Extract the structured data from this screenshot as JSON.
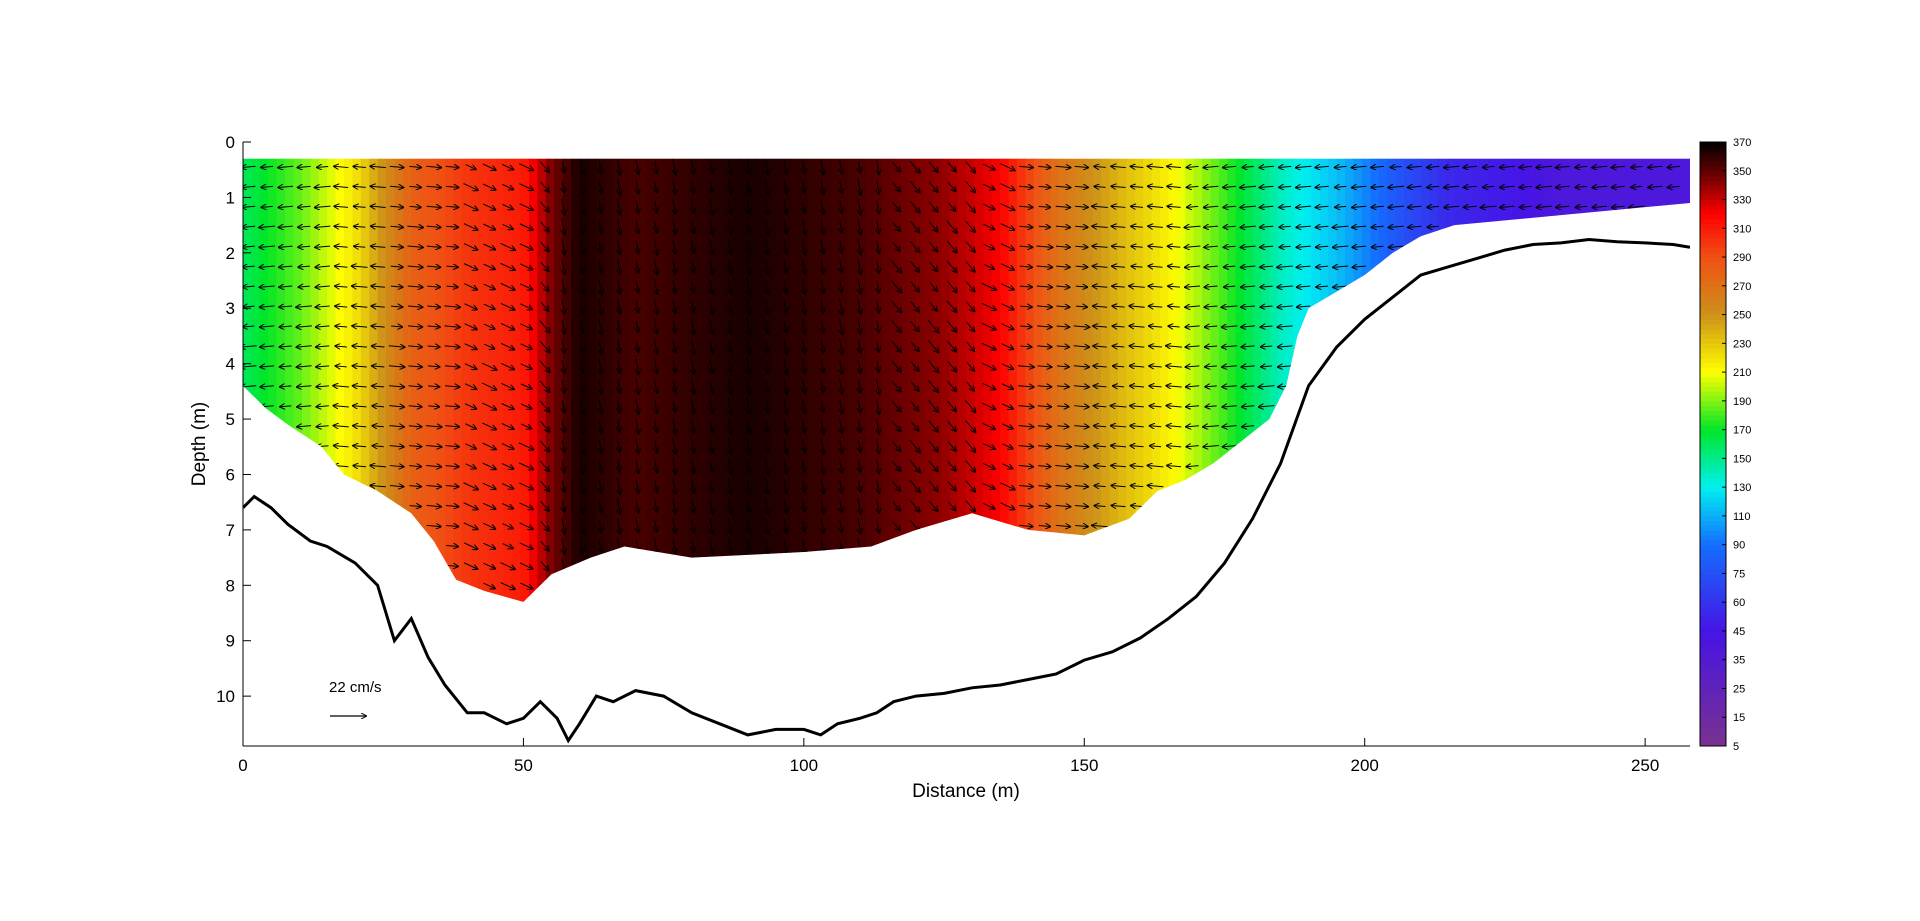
{
  "chart_data": {
    "type": "heatmap",
    "title": "",
    "xlabel": "Distance (m)",
    "ylabel": "Depth (m)",
    "xlim": [
      0,
      258
    ],
    "ylim": [
      0,
      10.9
    ],
    "y_reversed": true,
    "x_ticks": [
      "0",
      "50",
      "100",
      "150",
      "200",
      "250"
    ],
    "y_ticks": [
      "0",
      "1",
      "2",
      "3",
      "4",
      "5",
      "6",
      "7",
      "8",
      "9",
      "10"
    ],
    "colorbar": {
      "range": [
        5,
        370
      ],
      "ticks": [
        "5",
        "15",
        "25",
        "35",
        "45",
        "60",
        "75",
        "90",
        "110",
        "130",
        "150",
        "170",
        "190",
        "210",
        "230",
        "250",
        "270",
        "290",
        "310",
        "330",
        "350",
        "370"
      ],
      "tick_values": [
        5,
        15,
        25,
        35,
        45,
        60,
        75,
        90,
        110,
        130,
        150,
        170,
        190,
        210,
        230,
        250,
        270,
        290,
        310,
        330,
        350,
        370
      ]
    },
    "field_profile": {
      "x": [
        0,
        10,
        20,
        30,
        40,
        50,
        55,
        60,
        70,
        80,
        90,
        100,
        110,
        125,
        135,
        145,
        155,
        165,
        175,
        185,
        195,
        205,
        215,
        235,
        258
      ],
      "value": [
        160,
        185,
        220,
        280,
        300,
        310,
        345,
        365,
        355,
        360,
        365,
        360,
        355,
        340,
        320,
        270,
        240,
        215,
        180,
        140,
        115,
        80,
        55,
        40,
        40
      ]
    },
    "data_bottom_depth": {
      "x": [
        0,
        4,
        8,
        14,
        18,
        24,
        30,
        34,
        38,
        43,
        50,
        55,
        62,
        68,
        80,
        100,
        112,
        120,
        130,
        140,
        150,
        158,
        163,
        168,
        173,
        178,
        183,
        186,
        188,
        190,
        195,
        200,
        205,
        210,
        216,
        258
      ],
      "depth": [
        4.4,
        4.8,
        5.1,
        5.5,
        6.0,
        6.3,
        6.7,
        7.2,
        7.9,
        8.1,
        8.3,
        7.8,
        7.5,
        7.3,
        7.5,
        7.4,
        7.3,
        7.0,
        6.7,
        7.0,
        7.1,
        6.8,
        6.3,
        6.1,
        5.8,
        5.4,
        5.0,
        4.4,
        3.5,
        3.0,
        2.7,
        2.4,
        2.0,
        1.7,
        1.5,
        1.1
      ]
    },
    "bed_profile": {
      "x": [
        0,
        2,
        5,
        8,
        12,
        15,
        20,
        24,
        27,
        30,
        33,
        36,
        40,
        43,
        47,
        50,
        53,
        56,
        58,
        60,
        63,
        66,
        70,
        75,
        80,
        85,
        90,
        95,
        100,
        103,
        106,
        110,
        113,
        116,
        120,
        125,
        130,
        135,
        140,
        145,
        150,
        155,
        160,
        165,
        170,
        175,
        180,
        185,
        190,
        195,
        200,
        205,
        210,
        215,
        220,
        225,
        230,
        235,
        240,
        245,
        250,
        255,
        258
      ],
      "depth": [
        6.6,
        6.4,
        6.6,
        6.9,
        7.2,
        7.3,
        7.6,
        8.0,
        9.0,
        8.6,
        9.3,
        9.8,
        10.3,
        10.3,
        10.5,
        10.4,
        10.1,
        10.4,
        10.8,
        10.5,
        10.0,
        10.1,
        9.9,
        10.0,
        10.3,
        10.5,
        10.7,
        10.6,
        10.6,
        10.7,
        10.5,
        10.4,
        10.3,
        10.1,
        10.0,
        9.95,
        9.85,
        9.8,
        9.7,
        9.6,
        9.35,
        9.2,
        8.95,
        8.6,
        8.2,
        7.6,
        6.8,
        5.8,
        4.4,
        3.7,
        3.2,
        2.8,
        2.4,
        2.25,
        2.1,
        1.95,
        1.85,
        1.82,
        1.76,
        1.8,
        1.82,
        1.85,
        1.9
      ]
    },
    "reference_vector": {
      "label": "22 cm/s",
      "speed_cm_s": 22
    }
  }
}
